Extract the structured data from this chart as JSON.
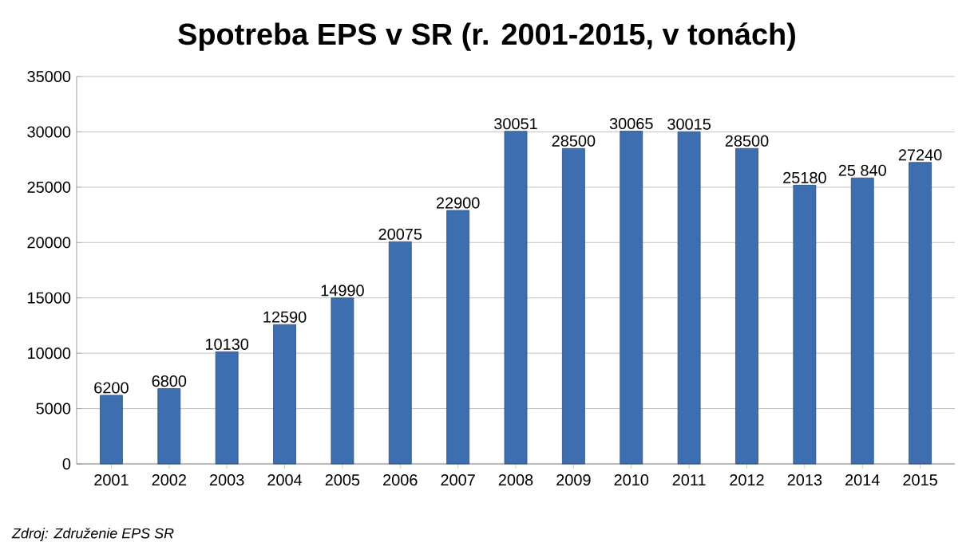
{
  "chart_data": {
    "type": "bar",
    "title": "Spotreba EPS v SR (r. 2001-2015, v tonách)",
    "categories": [
      "2001",
      "2002",
      "2003",
      "2004",
      "2005",
      "2006",
      "2007",
      "2008",
      "2009",
      "2010",
      "2011",
      "2012",
      "2013",
      "2014",
      "2015"
    ],
    "values": [
      6200,
      6800,
      10130,
      12590,
      14990,
      20075,
      22900,
      30051,
      28500,
      30065,
      30015,
      28500,
      25180,
      25840,
      27240
    ],
    "value_labels": [
      "6200",
      "6800",
      "10130",
      "12590",
      "14990",
      "20075",
      "22900",
      "30051",
      "28500",
      "30065",
      "30015",
      "28500",
      "25180",
      "25 840",
      "27240"
    ],
    "color": "#3d6fb0",
    "ylim": [
      0,
      35000
    ],
    "yticks": [
      0,
      5000,
      10000,
      15000,
      20000,
      25000,
      30000,
      35000
    ],
    "grid": "y",
    "annotations": [
      "*Zdroj: Združenie EPS SR*"
    ]
  }
}
